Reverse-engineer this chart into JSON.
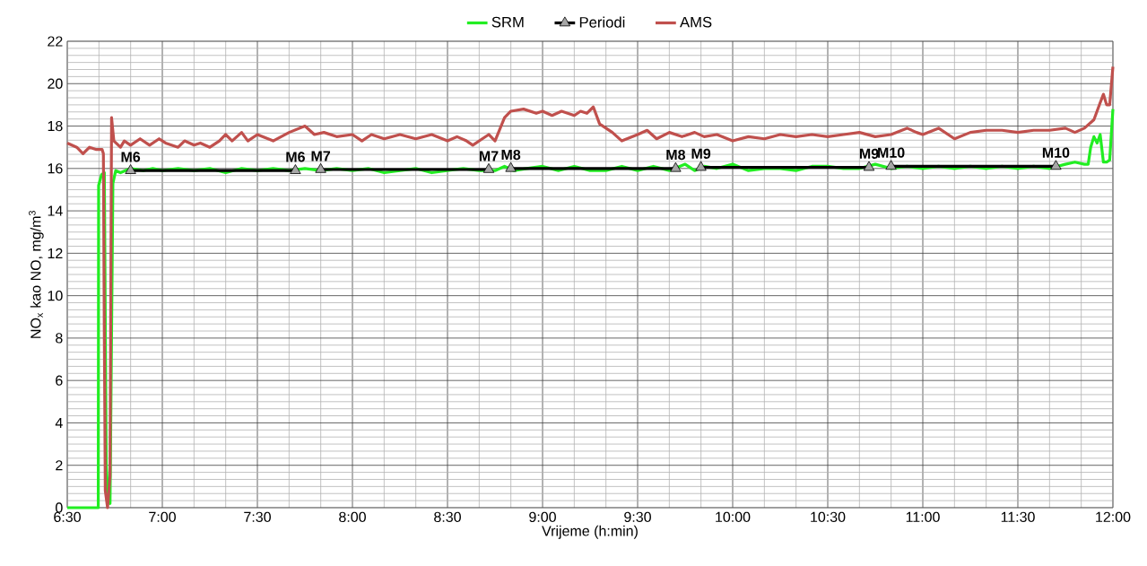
{
  "chart_data": {
    "type": "line",
    "xlabel": "Vrijeme (h:min)",
    "ylabel": "NO$_{x}$ kao NO, mg/m$^{3}$",
    "xlim": [
      6.5,
      12.0
    ],
    "ylim": [
      0,
      22
    ],
    "xticks": [
      {
        "value": 6.5,
        "label": "6:30"
      },
      {
        "value": 7.0,
        "label": "7:00"
      },
      {
        "value": 7.5,
        "label": "7:30"
      },
      {
        "value": 8.0,
        "label": "8:00"
      },
      {
        "value": 8.5,
        "label": "8:30"
      },
      {
        "value": 9.0,
        "label": "9:00"
      },
      {
        "value": 9.5,
        "label": "9:30"
      },
      {
        "value": 10.0,
        "label": "10:00"
      },
      {
        "value": 10.5,
        "label": "10:30"
      },
      {
        "value": 11.0,
        "label": "11:00"
      },
      {
        "value": 11.5,
        "label": "11:30"
      },
      {
        "value": 12.0,
        "label": "12:00"
      }
    ],
    "yticks": [
      0,
      2,
      4,
      6,
      8,
      10,
      12,
      14,
      16,
      18,
      20,
      22
    ],
    "grid": true,
    "legend": "top",
    "series": [
      {
        "name": "SRM",
        "color": "#22ee22",
        "marker": "none",
        "x": [
          6.5,
          6.663,
          6.665,
          6.68,
          6.695,
          6.705,
          6.715,
          6.725,
          6.74,
          6.755,
          6.78,
          6.833,
          6.9,
          6.95,
          7.0,
          7.083,
          7.167,
          7.25,
          7.333,
          7.417,
          7.5,
          7.583,
          7.667,
          7.75,
          7.833,
          7.917,
          8.0,
          8.083,
          8.167,
          8.25,
          8.333,
          8.417,
          8.5,
          8.583,
          8.667,
          8.75,
          8.8,
          8.85,
          8.917,
          9.0,
          9.083,
          9.167,
          9.25,
          9.333,
          9.417,
          9.5,
          9.583,
          9.667,
          9.75,
          9.8,
          9.85,
          9.917,
          10.0,
          10.083,
          10.167,
          10.25,
          10.333,
          10.417,
          10.5,
          10.583,
          10.667,
          10.75,
          10.833,
          10.917,
          11.0,
          11.083,
          11.167,
          11.25,
          11.333,
          11.417,
          11.5,
          11.583,
          11.667,
          11.75,
          11.8,
          11.85,
          11.87,
          11.883,
          11.9,
          11.917,
          11.933,
          11.95,
          11.967,
          11.983,
          12.0
        ],
        "values": [
          0,
          0,
          15.2,
          15.7,
          15.8,
          2,
          0.5,
          0.2,
          15.3,
          15.9,
          15.8,
          16.0,
          15.9,
          16.0,
          15.9,
          16.0,
          15.9,
          16.0,
          15.8,
          16.0,
          15.9,
          16.0,
          15.9,
          16.0,
          15.9,
          16.0,
          15.9,
          16.0,
          15.8,
          15.9,
          16.0,
          15.8,
          15.9,
          16.0,
          15.9,
          15.9,
          16.1,
          15.9,
          16.0,
          16.1,
          15.9,
          16.1,
          15.9,
          15.9,
          16.1,
          15.9,
          16.1,
          15.9,
          16.2,
          15.9,
          16.1,
          16.0,
          16.2,
          15.9,
          16.0,
          16.0,
          15.9,
          16.1,
          16.1,
          16.0,
          16.0,
          16.2,
          16.0,
          16.1,
          16.0,
          16.1,
          16.0,
          16.1,
          16.0,
          16.1,
          16.0,
          16.1,
          16.0,
          16.2,
          16.3,
          16.2,
          16.2,
          17.0,
          17.5,
          17.2,
          17.6,
          16.3,
          16.3,
          16.4,
          18.8
        ]
      },
      {
        "name": "Periodi",
        "color": "#000000",
        "marker": "triangle",
        "x": [
          6.833,
          7.7,
          7.75,
          7.833,
          8.717,
          8.75,
          8.833,
          9.7,
          9.75,
          9.833,
          10.717,
          10.75,
          10.833,
          11.7
        ],
        "values": [
          15.9,
          15.9,
          null,
          15.95,
          15.95,
          null,
          16.0,
          16.0,
          null,
          16.05,
          16.05,
          null,
          16.1,
          16.1
        ]
      },
      {
        "name": "AMS",
        "color": "#c0504d",
        "marker": "none",
        "x": [
          6.5,
          6.55,
          6.583,
          6.617,
          6.65,
          6.683,
          6.69,
          6.695,
          6.7,
          6.712,
          6.725,
          6.733,
          6.745,
          6.78,
          6.8,
          6.833,
          6.883,
          6.933,
          6.983,
          7.017,
          7.083,
          7.117,
          7.167,
          7.2,
          7.25,
          7.3,
          7.333,
          7.367,
          7.417,
          7.45,
          7.5,
          7.583,
          7.667,
          7.75,
          7.8,
          7.85,
          7.917,
          8.0,
          8.05,
          8.1,
          8.167,
          8.25,
          8.333,
          8.417,
          8.5,
          8.55,
          8.6,
          8.633,
          8.683,
          8.717,
          8.75,
          8.8,
          8.833,
          8.9,
          8.967,
          9.0,
          9.05,
          9.1,
          9.167,
          9.2,
          9.233,
          9.267,
          9.3,
          9.367,
          9.417,
          9.5,
          9.55,
          9.6,
          9.667,
          9.733,
          9.8,
          9.85,
          9.917,
          10.0,
          10.083,
          10.167,
          10.25,
          10.333,
          10.417,
          10.5,
          10.583,
          10.667,
          10.75,
          10.833,
          10.917,
          10.967,
          11.0,
          11.083,
          11.167,
          11.25,
          11.333,
          11.417,
          11.5,
          11.583,
          11.667,
          11.75,
          11.8,
          11.85,
          11.9,
          11.933,
          11.95,
          11.967,
          11.983,
          12.0
        ],
        "values": [
          17.2,
          17.0,
          16.7,
          17.0,
          16.9,
          16.9,
          16.7,
          8,
          0.8,
          0,
          1.5,
          18.4,
          17.3,
          17.0,
          17.3,
          17.1,
          17.4,
          17.1,
          17.4,
          17.2,
          17.0,
          17.3,
          17.1,
          17.2,
          17.0,
          17.3,
          17.6,
          17.3,
          17.7,
          17.3,
          17.6,
          17.3,
          17.7,
          18.0,
          17.6,
          17.7,
          17.5,
          17.6,
          17.3,
          17.6,
          17.4,
          17.6,
          17.4,
          17.6,
          17.3,
          17.5,
          17.3,
          17.1,
          17.4,
          17.6,
          17.3,
          18.4,
          18.7,
          18.8,
          18.6,
          18.7,
          18.5,
          18.7,
          18.5,
          18.7,
          18.6,
          18.9,
          18.1,
          17.7,
          17.3,
          17.6,
          17.8,
          17.4,
          17.7,
          17.5,
          17.7,
          17.5,
          17.6,
          17.3,
          17.5,
          17.4,
          17.6,
          17.5,
          17.6,
          17.5,
          17.6,
          17.7,
          17.5,
          17.6,
          17.9,
          17.7,
          17.6,
          17.9,
          17.4,
          17.7,
          17.8,
          17.8,
          17.7,
          17.8,
          17.8,
          17.9,
          17.7,
          17.9,
          18.3,
          19.1,
          19.5,
          19.0,
          19.0,
          20.8
        ]
      }
    ],
    "annotations": [
      {
        "text": "M6",
        "x": 6.833,
        "y": 15.9
      },
      {
        "text": "M6",
        "x": 7.7,
        "y": 15.9
      },
      {
        "text": "M7",
        "x": 7.833,
        "y": 15.95
      },
      {
        "text": "M7",
        "x": 8.717,
        "y": 15.95
      },
      {
        "text": "M8",
        "x": 8.833,
        "y": 16.0
      },
      {
        "text": "M8",
        "x": 9.7,
        "y": 16.0
      },
      {
        "text": "M9",
        "x": 9.833,
        "y": 16.05
      },
      {
        "text": "M9",
        "x": 10.717,
        "y": 16.05
      },
      {
        "text": "M10",
        "x": 10.833,
        "y": 16.1
      },
      {
        "text": "M10",
        "x": 11.7,
        "y": 16.1
      }
    ]
  }
}
